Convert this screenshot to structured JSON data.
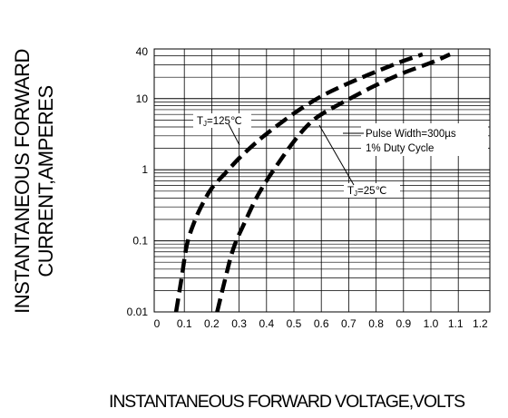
{
  "chart_data": {
    "type": "line",
    "title": "",
    "xlabel": "INSTANTANEOUS FORWARD VOLTAGE,VOLTS",
    "ylabel_lines": [
      "INSTANTANEOUS FORWARD",
      "CURRENT,AMPERES"
    ],
    "xlim": [
      0,
      1.2
    ],
    "ylim": [
      0.01,
      50
    ],
    "yscale": "log",
    "grid": true,
    "x_ticks": [
      "0",
      "0.1",
      "0.2",
      "0.3",
      "0.4",
      "0.5",
      "0.6",
      "0.7",
      "0.8",
      "0.9",
      "1.0",
      "1.1",
      "1.2"
    ],
    "y_ticks": [
      "0.01",
      "0.1",
      "1",
      "10",
      "40"
    ],
    "series": [
      {
        "name": "TJ=125℃",
        "x": [
          0.07,
          0.09,
          0.11,
          0.14,
          0.17,
          0.2,
          0.25,
          0.3,
          0.35,
          0.4,
          0.5,
          0.6,
          0.7,
          0.8,
          0.9,
          0.97
        ],
        "y": [
          0.01,
          0.03,
          0.09,
          0.2,
          0.35,
          0.55,
          0.9,
          1.45,
          2.2,
          3.2,
          6.2,
          10.8,
          16.5,
          24,
          34,
          42
        ]
      },
      {
        "name": "TJ=25℃",
        "x": [
          0.22,
          0.25,
          0.28,
          0.32,
          0.36,
          0.4,
          0.45,
          0.5,
          0.55,
          0.6,
          0.7,
          0.8,
          0.9,
          1.0,
          1.07
        ],
        "y": [
          0.01,
          0.03,
          0.08,
          0.18,
          0.38,
          0.7,
          1.35,
          2.5,
          4.2,
          6.0,
          9.8,
          15.5,
          23,
          32,
          42
        ]
      }
    ],
    "annotations": [
      {
        "label_parts": [
          "T",
          "J",
          "=125℃"
        ]
      },
      {
        "label_parts": [
          "T",
          "J",
          "=25℃"
        ]
      },
      {
        "lines": [
          "Pulse Width=300",
          "µ",
          "s",
          "1% Duty Cycle"
        ]
      }
    ],
    "colors": {
      "curve": "#000000",
      "grid": "#000000"
    }
  }
}
